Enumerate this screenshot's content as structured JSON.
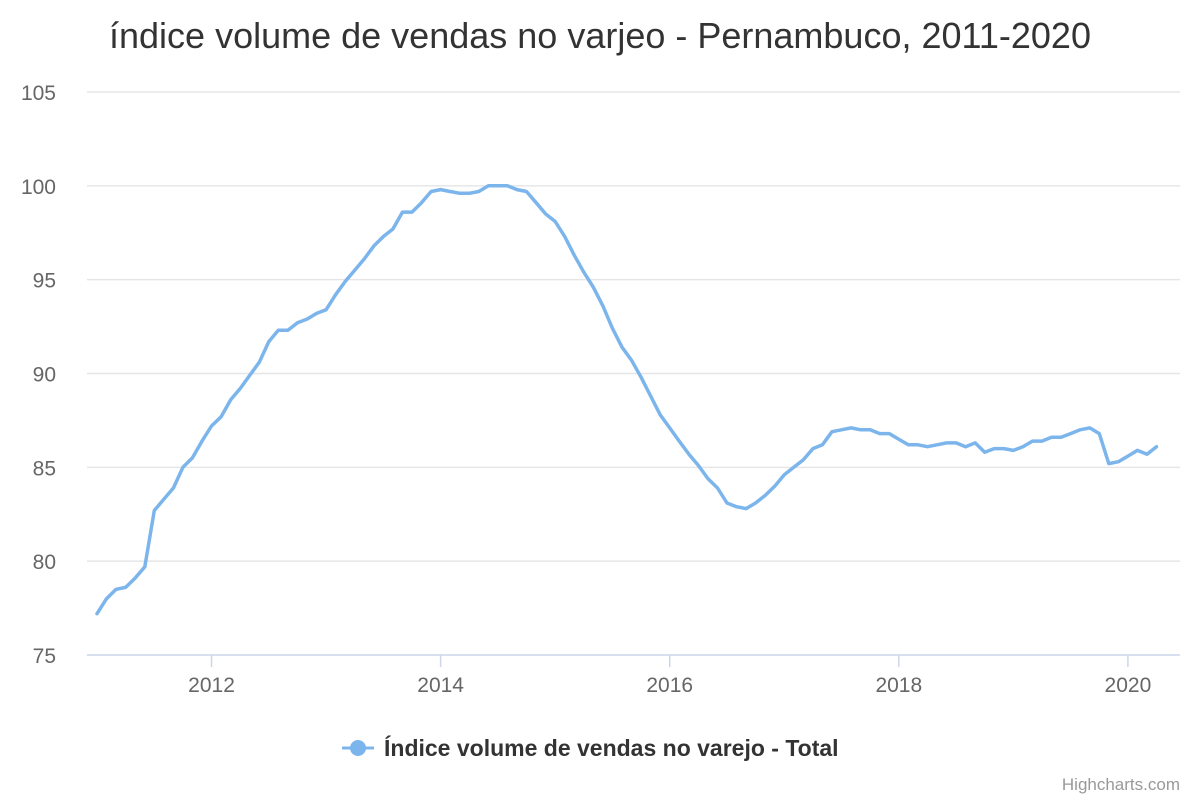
{
  "chart_data": {
    "type": "line",
    "title": "índice volume de vendas no varjeo - Pernambuco, 2011-2020",
    "xlabel": "",
    "ylabel": "",
    "ylim": [
      75,
      105
    ],
    "yticks": [
      75,
      80,
      85,
      90,
      95,
      100,
      105
    ],
    "xticks": [
      2012,
      2014,
      2016,
      2018,
      2020
    ],
    "xlim": [
      2011.0,
      2020.35
    ],
    "grid": true,
    "legend_position": "bottom-center",
    "series": [
      {
        "name": "Índice volume de vendas no varejo - Total",
        "color": "#7cb5ec",
        "x": [
          2011.0,
          2011.083,
          2011.167,
          2011.25,
          2011.333,
          2011.417,
          2011.5,
          2011.583,
          2011.667,
          2011.75,
          2011.833,
          2011.917,
          2012.0,
          2012.083,
          2012.167,
          2012.25,
          2012.333,
          2012.417,
          2012.5,
          2012.583,
          2012.667,
          2012.75,
          2012.833,
          2012.917,
          2013.0,
          2013.083,
          2013.167,
          2013.25,
          2013.333,
          2013.417,
          2013.5,
          2013.583,
          2013.667,
          2013.75,
          2013.833,
          2013.917,
          2014.0,
          2014.083,
          2014.167,
          2014.25,
          2014.333,
          2014.417,
          2014.5,
          2014.583,
          2014.667,
          2014.75,
          2014.833,
          2014.917,
          2015.0,
          2015.083,
          2015.167,
          2015.25,
          2015.333,
          2015.417,
          2015.5,
          2015.583,
          2015.667,
          2015.75,
          2015.833,
          2015.917,
          2016.0,
          2016.083,
          2016.167,
          2016.25,
          2016.333,
          2016.417,
          2016.5,
          2016.583,
          2016.667,
          2016.75,
          2016.833,
          2016.917,
          2017.0,
          2017.083,
          2017.167,
          2017.25,
          2017.333,
          2017.417,
          2017.5,
          2017.583,
          2017.667,
          2017.75,
          2017.833,
          2017.917,
          2018.0,
          2018.083,
          2018.167,
          2018.25,
          2018.333,
          2018.417,
          2018.5,
          2018.583,
          2018.667,
          2018.75,
          2018.833,
          2018.917,
          2019.0,
          2019.083,
          2019.167,
          2019.25,
          2019.333,
          2019.417,
          2019.5,
          2019.583,
          2019.667,
          2019.75,
          2019.833,
          2019.917,
          2020.0,
          2020.083,
          2020.167,
          2020.25
        ],
        "values": [
          77.2,
          78.0,
          78.5,
          78.6,
          79.1,
          79.7,
          82.7,
          83.3,
          83.9,
          85.0,
          85.5,
          86.4,
          87.2,
          87.7,
          88.6,
          89.2,
          89.9,
          90.6,
          91.7,
          92.3,
          92.3,
          92.7,
          92.9,
          93.2,
          93.4,
          94.2,
          94.9,
          95.5,
          96.1,
          96.8,
          97.3,
          97.7,
          98.6,
          98.6,
          99.1,
          99.7,
          99.8,
          99.7,
          99.6,
          99.6,
          99.7,
          100.0,
          100.0,
          100.0,
          99.8,
          99.7,
          99.1,
          98.5,
          98.1,
          97.3,
          96.3,
          95.4,
          94.6,
          93.6,
          92.4,
          91.4,
          90.7,
          89.8,
          88.8,
          87.8,
          87.1,
          86.4,
          85.7,
          85.1,
          84.4,
          83.9,
          83.1,
          82.9,
          82.8,
          83.1,
          83.5,
          84.0,
          84.6,
          85.0,
          85.4,
          86.0,
          86.2,
          86.9,
          87.0,
          87.1,
          87.0,
          87.0,
          86.8,
          86.8,
          86.5,
          86.2,
          86.2,
          86.1,
          86.2,
          86.3,
          86.3,
          86.1,
          86.3,
          85.8,
          86.0,
          86.0,
          85.9,
          86.1,
          86.4,
          86.4,
          86.6,
          86.6,
          86.8,
          87.0,
          87.1,
          86.8,
          85.2,
          85.3,
          85.6,
          85.9,
          85.7,
          86.1
        ]
      }
    ]
  },
  "credit": "Highcharts.com"
}
